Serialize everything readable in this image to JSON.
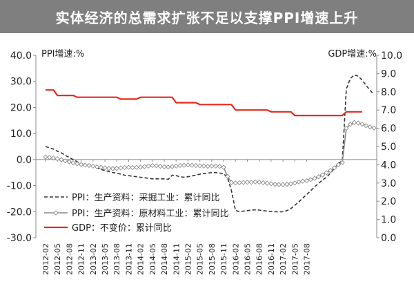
{
  "header": {
    "title": "实体经济的总需求扩张不足以支撑PPI增速上升",
    "title_bg": "#7f7f7f"
  },
  "chart_data": {
    "type": "line",
    "title": "实体经济的总需求扩张不足以支撑PPI增速上升",
    "left_axis_label": "PPI增速:%",
    "right_axis_label": "GDP增速:%",
    "ylim_left": [
      -30,
      40
    ],
    "ylim_right": [
      0,
      10
    ],
    "left_ticks": [
      "40.0",
      "30.0",
      "20.0",
      "10.0",
      "0.0",
      "-10.0",
      "-20.0",
      "-30.0"
    ],
    "right_ticks": [
      "10.0",
      "9.0",
      "8.0",
      "7.0",
      "6.0",
      "5.0",
      "4.0",
      "3.0",
      "2.0",
      "1.0",
      "0.0"
    ],
    "x_tick_labels": [
      "2012-02",
      "2012-05",
      "2012-08",
      "2012-11",
      "2013-02",
      "2013-05",
      "2013-08",
      "2013-11",
      "2014-02",
      "2014-05",
      "2014-08",
      "2014-11",
      "2015-02",
      "2015-05",
      "2015-08",
      "2015-11",
      "2016-02",
      "2016-05",
      "2016-08",
      "2016-11",
      "2017-02",
      "2017-05",
      "2017-08"
    ],
    "grid": false,
    "legend_position": "bottom-center",
    "series": [
      {
        "name": "PPI：生产资料：采掘工业：累计同比",
        "axis": "left",
        "style": "dashed",
        "color": "#333333",
        "values": [
          5.0,
          4.5,
          4.0,
          3.2,
          2.6,
          1.6,
          0.8,
          0.0,
          -0.8,
          -1.6,
          -2.0,
          -2.2,
          -2.6,
          -3.2,
          -3.8,
          -4.2,
          -4.6,
          -5.0,
          -5.2,
          -5.6,
          -6.0,
          -6.2,
          -6.4,
          -6.6,
          -6.8,
          -7.0,
          -7.2,
          -7.4,
          -7.4,
          -7.4,
          -7.4,
          -7.6,
          -6.0,
          -6.2,
          -6.6,
          -6.8,
          -6.6,
          -6.3,
          -6.0,
          -5.6,
          -5.4,
          -5.2,
          -5.0,
          -5.0,
          -5.2,
          -5.4,
          -7.0,
          -12.0,
          -19.5,
          -20.0,
          -19.8,
          -19.6,
          -19.4,
          -19.3,
          -19.4,
          -19.6,
          -19.8,
          -19.9,
          -20.0,
          -20.1,
          -20.0,
          -19.6,
          -18.8,
          -17.6,
          -16.2,
          -14.8,
          -13.4,
          -12.0,
          -10.4,
          -9.2,
          -7.8,
          -6.8,
          -5.2,
          -3.4,
          -1.5,
          -0.5,
          27.0,
          31.0,
          32.5,
          32.0,
          30.5,
          28.5,
          26.6,
          25.0
        ]
      },
      {
        "name": "PPI：生产资料：原材料工业：累计同比",
        "axis": "left",
        "style": "marker-line",
        "color": "#8a8a8a",
        "values": [
          1.0,
          0.8,
          0.6,
          0.3,
          -0.1,
          -0.5,
          -0.9,
          -1.3,
          -1.6,
          -1.9,
          -2.1,
          -2.3,
          -2.5,
          -2.8,
          -3.0,
          -3.2,
          -3.4,
          -3.5,
          -3.4,
          -3.2,
          -3.1,
          -3.0,
          -3.1,
          -3.0,
          -2.9,
          -2.7,
          -2.5,
          -2.3,
          -2.4,
          -2.6,
          -2.8,
          -2.9,
          -2.7,
          -2.5,
          -2.3,
          -2.2,
          -2.1,
          -2.2,
          -2.3,
          -2.4,
          -2.5,
          -2.6,
          -2.5,
          -2.5,
          -2.6,
          -3.0,
          -6.5,
          -8.8,
          -9.0,
          -8.9,
          -8.8,
          -8.7,
          -8.7,
          -8.6,
          -8.7,
          -8.9,
          -9.1,
          -9.3,
          -9.5,
          -9.6,
          -9.6,
          -9.5,
          -9.3,
          -9.0,
          -8.6,
          -8.3,
          -8.1,
          -7.7,
          -7.2,
          -6.6,
          -5.9,
          -5.1,
          -4.2,
          -3.2,
          -2.0,
          -1.2,
          12.0,
          13.5,
          14.2,
          14.0,
          13.6,
          13.0,
          12.5,
          12.1
        ]
      },
      {
        "name": "GDP：不变价：累计同比",
        "axis": "right",
        "style": "solid",
        "color": "#e8281e",
        "x_start_index": 0,
        "x_end_index": 80,
        "values": [
          8.1,
          8.1,
          8.1,
          7.8,
          7.8,
          7.8,
          7.8,
          7.8,
          7.7,
          7.7,
          7.7,
          7.7,
          7.7,
          7.7,
          7.7,
          7.7,
          7.7,
          7.7,
          7.7,
          7.6,
          7.6,
          7.6,
          7.6,
          7.6,
          7.7,
          7.7,
          7.7,
          7.7,
          7.7,
          7.7,
          7.7,
          7.7,
          7.7,
          7.4,
          7.4,
          7.4,
          7.4,
          7.4,
          7.4,
          7.3,
          7.3,
          7.3,
          7.3,
          7.3,
          7.3,
          7.3,
          7.3,
          7.3,
          7.0,
          7.0,
          7.0,
          7.0,
          7.0,
          7.0,
          7.0,
          7.0,
          7.0,
          6.9,
          6.9,
          6.9,
          6.9,
          6.9,
          6.9,
          6.7,
          6.7,
          6.7,
          6.7,
          6.7,
          6.7,
          6.7,
          6.7,
          6.7,
          6.7,
          6.7,
          6.7,
          6.7,
          6.9,
          6.9,
          6.9,
          6.9,
          6.9
        ]
      }
    ]
  }
}
